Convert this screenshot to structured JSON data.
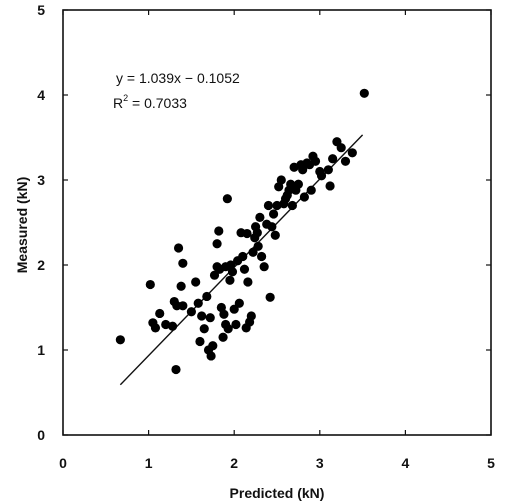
{
  "chart_data": {
    "type": "scatter",
    "title": "",
    "xlabel": "Predicted (kN)",
    "ylabel": "Measured (kN)",
    "xlim": [
      0,
      5
    ],
    "ylim": [
      0,
      5
    ],
    "x_ticks": [
      "0",
      "1",
      "2",
      "3",
      "4",
      "5"
    ],
    "y_ticks": [
      "0",
      "1",
      "2",
      "3",
      "4",
      "5"
    ],
    "grid": false,
    "legend": "none",
    "marker_color": "#000000",
    "equation": "y = 1.039x − 0.1052",
    "r2_base": "R",
    "r2_exp": "2",
    "r2_value": " = 0.7033",
    "trendline": {
      "slope": 1.039,
      "intercept": -0.1052,
      "x_range": [
        0.67,
        3.5
      ]
    },
    "points": [
      [
        0.67,
        1.12
      ],
      [
        1.02,
        1.77
      ],
      [
        1.05,
        1.32
      ],
      [
        1.08,
        1.26
      ],
      [
        1.13,
        1.43
      ],
      [
        1.2,
        1.3
      ],
      [
        1.28,
        1.28
      ],
      [
        1.3,
        1.57
      ],
      [
        1.32,
        0.77
      ],
      [
        1.33,
        1.52
      ],
      [
        1.35,
        2.2
      ],
      [
        1.38,
        1.75
      ],
      [
        1.4,
        1.52
      ],
      [
        1.4,
        2.02
      ],
      [
        1.5,
        1.45
      ],
      [
        1.55,
        1.8
      ],
      [
        1.58,
        1.55
      ],
      [
        1.6,
        1.1
      ],
      [
        1.62,
        1.4
      ],
      [
        1.65,
        1.25
      ],
      [
        1.68,
        1.63
      ],
      [
        1.7,
        1.0
      ],
      [
        1.72,
        1.38
      ],
      [
        1.73,
        0.93
      ],
      [
        1.75,
        1.05
      ],
      [
        1.77,
        1.88
      ],
      [
        1.8,
        2.25
      ],
      [
        1.8,
        1.98
      ],
      [
        1.82,
        2.4
      ],
      [
        1.83,
        1.95
      ],
      [
        1.85,
        1.5
      ],
      [
        1.87,
        1.15
      ],
      [
        1.88,
        1.42
      ],
      [
        1.9,
        1.98
      ],
      [
        1.9,
        1.3
      ],
      [
        1.92,
        2.78
      ],
      [
        1.93,
        1.25
      ],
      [
        1.95,
        1.82
      ],
      [
        1.96,
        2.0
      ],
      [
        1.98,
        1.92
      ],
      [
        2.0,
        1.48
      ],
      [
        2.02,
        1.3
      ],
      [
        2.04,
        2.05
      ],
      [
        2.06,
        1.55
      ],
      [
        2.08,
        2.38
      ],
      [
        2.1,
        2.1
      ],
      [
        2.12,
        1.95
      ],
      [
        2.14,
        1.26
      ],
      [
        2.15,
        2.37
      ],
      [
        2.16,
        1.8
      ],
      [
        2.18,
        1.33
      ],
      [
        2.2,
        1.4
      ],
      [
        2.22,
        2.15
      ],
      [
        2.24,
        2.32
      ],
      [
        2.25,
        2.45
      ],
      [
        2.27,
        2.38
      ],
      [
        2.28,
        2.22
      ],
      [
        2.3,
        2.56
      ],
      [
        2.32,
        2.1
      ],
      [
        2.35,
        1.98
      ],
      [
        2.38,
        2.48
      ],
      [
        2.4,
        2.7
      ],
      [
        2.42,
        1.62
      ],
      [
        2.44,
        2.45
      ],
      [
        2.46,
        2.6
      ],
      [
        2.48,
        2.35
      ],
      [
        2.5,
        2.7
      ],
      [
        2.52,
        2.92
      ],
      [
        2.55,
        3.0
      ],
      [
        2.58,
        2.72
      ],
      [
        2.6,
        2.78
      ],
      [
        2.62,
        2.82
      ],
      [
        2.64,
        2.88
      ],
      [
        2.66,
        2.95
      ],
      [
        2.68,
        2.7
      ],
      [
        2.7,
        3.15
      ],
      [
        2.72,
        2.88
      ],
      [
        2.75,
        2.95
      ],
      [
        2.78,
        3.18
      ],
      [
        2.8,
        3.12
      ],
      [
        2.82,
        2.8
      ],
      [
        2.85,
        3.2
      ],
      [
        2.88,
        3.18
      ],
      [
        2.9,
        2.88
      ],
      [
        2.92,
        3.28
      ],
      [
        2.95,
        3.22
      ],
      [
        3.0,
        3.1
      ],
      [
        3.02,
        3.05
      ],
      [
        3.1,
        3.12
      ],
      [
        3.12,
        2.93
      ],
      [
        3.15,
        3.25
      ],
      [
        3.2,
        3.45
      ],
      [
        3.25,
        3.38
      ],
      [
        3.3,
        3.22
      ],
      [
        3.38,
        3.32
      ],
      [
        3.52,
        4.02
      ]
    ]
  }
}
